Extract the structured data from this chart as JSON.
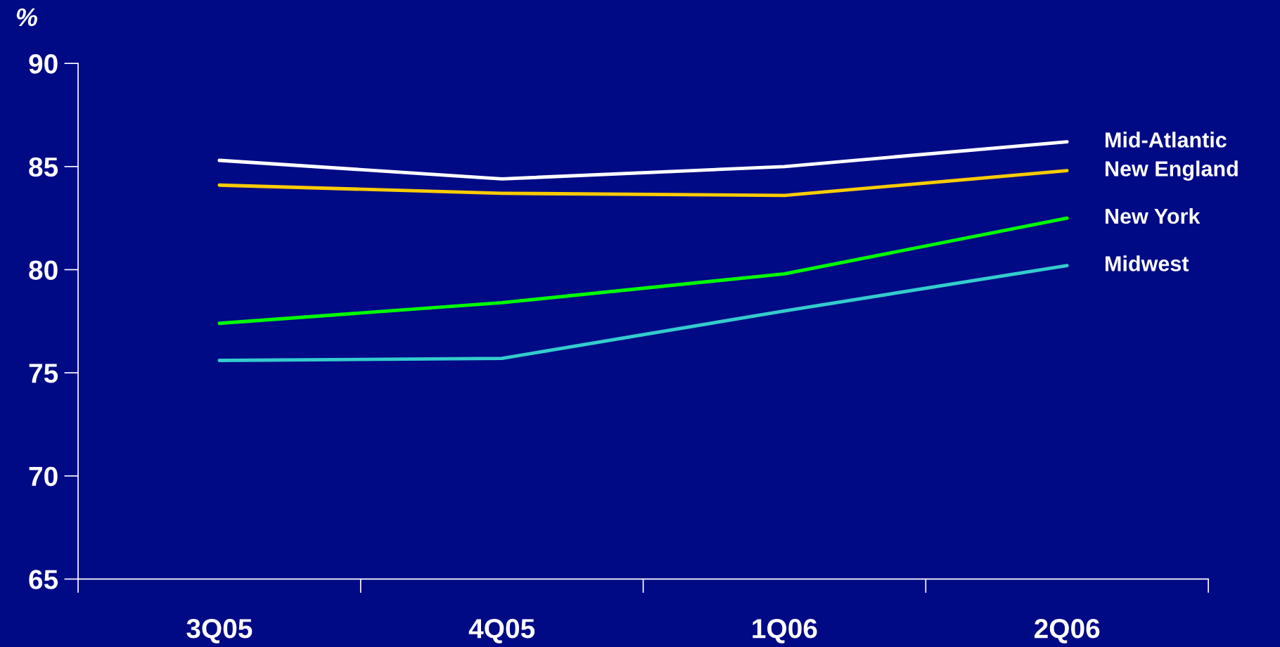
{
  "chart_data": {
    "type": "line",
    "ylabel": "%",
    "categories": [
      "3Q05",
      "4Q05",
      "1Q06",
      "2Q06"
    ],
    "series": [
      {
        "name": "Mid-Atlantic",
        "color": "#ffffff",
        "values": [
          85.3,
          84.4,
          85.0,
          86.2
        ]
      },
      {
        "name": "New England",
        "color": "#ffcc00",
        "values": [
          84.1,
          83.7,
          83.6,
          84.8
        ]
      },
      {
        "name": "New York",
        "color": "#00ff00",
        "values": [
          77.4,
          78.4,
          79.8,
          82.5
        ]
      },
      {
        "name": "Midwest",
        "color": "#33cccc",
        "values": [
          75.6,
          75.7,
          78.0,
          80.2
        ]
      }
    ],
    "ylim": [
      65,
      90
    ],
    "yticks": [
      65,
      70,
      75,
      80,
      85,
      90
    ],
    "grid": false,
    "legend": false,
    "marker": "none",
    "line_style": "solid"
  }
}
